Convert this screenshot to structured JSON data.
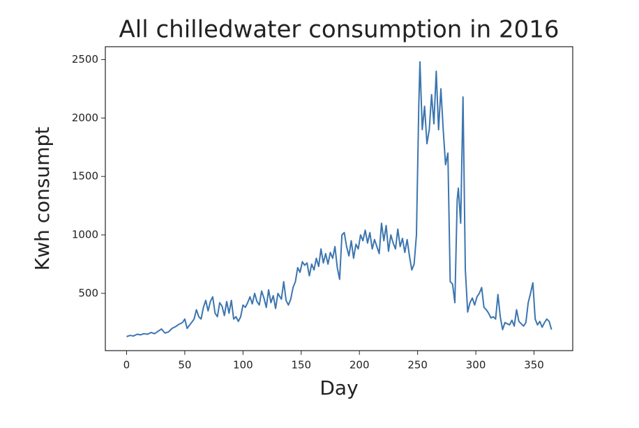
{
  "chart_data": {
    "type": "line",
    "title": "All chilledwater consumption in 2016",
    "x_label": "Day",
    "y_label": "Kwh consumpt",
    "x": [
      0,
      3,
      6,
      9,
      12,
      15,
      18,
      21,
      24,
      27,
      30,
      33,
      36,
      39,
      42,
      45,
      48,
      50,
      52,
      55,
      58,
      60,
      62,
      64,
      66,
      68,
      70,
      72,
      74,
      76,
      78,
      80,
      82,
      84,
      86,
      88,
      90,
      92,
      94,
      96,
      98,
      100,
      102,
      104,
      106,
      108,
      110,
      112,
      114,
      116,
      118,
      120,
      122,
      124,
      126,
      128,
      130,
      133,
      135,
      137,
      139,
      141,
      143,
      145,
      147,
      149,
      151,
      153,
      155,
      157,
      159,
      161,
      163,
      165,
      167,
      169,
      171,
      173,
      175,
      177,
      179,
      181,
      183,
      185,
      187,
      189,
      191,
      193,
      195,
      197,
      199,
      201,
      203,
      205,
      207,
      209,
      211,
      213,
      215,
      217,
      219,
      221,
      223,
      225,
      227,
      229,
      231,
      233,
      235,
      237,
      239,
      241,
      243,
      245,
      247,
      249,
      251,
      252,
      254,
      256,
      258,
      260,
      262,
      264,
      266,
      268,
      270,
      272,
      274,
      276,
      278,
      280,
      282,
      284,
      285,
      287,
      289,
      291,
      293,
      295,
      297,
      299,
      301,
      303,
      305,
      307,
      309,
      311,
      313,
      315,
      317,
      319,
      321,
      323,
      325,
      327,
      329,
      331,
      333,
      335,
      337,
      339,
      341,
      343,
      345,
      347,
      349,
      351,
      353,
      355,
      357,
      359,
      361,
      363,
      365
    ],
    "series": [
      {
        "name": "chilledwater",
        "color": "#3b75af",
        "values": [
          130,
          140,
          135,
          150,
          145,
          155,
          150,
          165,
          155,
          175,
          195,
          160,
          170,
          200,
          215,
          235,
          250,
          280,
          200,
          240,
          280,
          360,
          300,
          280,
          380,
          440,
          350,
          430,
          470,
          330,
          300,
          420,
          390,
          310,
          430,
          330,
          440,
          280,
          300,
          260,
          300,
          400,
          380,
          420,
          470,
          410,
          500,
          430,
          400,
          520,
          460,
          380,
          530,
          420,
          480,
          370,
          500,
          450,
          600,
          440,
          400,
          450,
          550,
          600,
          720,
          680,
          770,
          740,
          760,
          650,
          750,
          700,
          800,
          730,
          880,
          760,
          840,
          750,
          850,
          800,
          900,
          720,
          620,
          1000,
          1020,
          900,
          820,
          950,
          800,
          920,
          880,
          1000,
          950,
          1040,
          930,
          1020,
          880,
          960,
          900,
          840,
          1100,
          950,
          1080,
          860,
          1000,
          930,
          880,
          1050,
          900,
          970,
          850,
          960,
          820,
          700,
          750,
          1000,
          2100,
          2480,
          1900,
          2100,
          1780,
          1900,
          2200,
          1950,
          2400,
          1900,
          2250,
          1900,
          1600,
          1700,
          600,
          580,
          420,
          1300,
          1400,
          1100,
          2180,
          700,
          340,
          420,
          460,
          400,
          470,
          500,
          550,
          380,
          360,
          330,
          290,
          300,
          280,
          490,
          300,
          190,
          250,
          240,
          230,
          270,
          220,
          360,
          260,
          240,
          220,
          250,
          420,
          500,
          590,
          280,
          230,
          260,
          210,
          250,
          280,
          260,
          190
        ]
      }
    ],
    "xlim": [
      -18.25,
      383.25
    ],
    "ylim": [
      10,
      2610
    ],
    "xticks": [
      0,
      50,
      100,
      150,
      200,
      250,
      300,
      350
    ],
    "yticks": [
      500,
      1000,
      1500,
      2000,
      2500
    ]
  }
}
